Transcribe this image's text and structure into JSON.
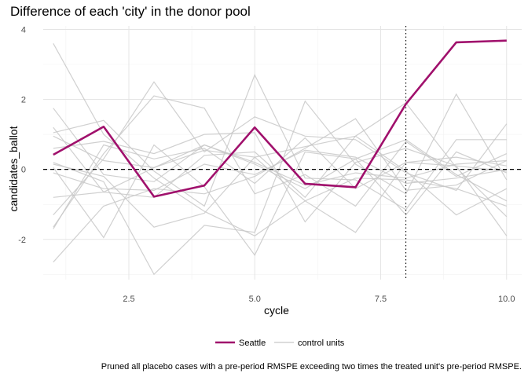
{
  "chart_data": {
    "type": "line",
    "title": "Difference of each 'city' in the donor pool",
    "xlabel": "cycle",
    "ylabel": "candidates_ballot",
    "xlim": [
      0.8,
      10.3
    ],
    "ylim": [
      -3.15,
      4.1
    ],
    "x_ticks": [
      2.5,
      5.0,
      7.5,
      10.0
    ],
    "x_tick_labels": [
      "2.5",
      "5.0",
      "7.5",
      "10.0"
    ],
    "y_ticks": [
      -2,
      0,
      2,
      4
    ],
    "y_tick_labels": [
      "-2",
      "0",
      "2",
      "4"
    ],
    "grid": true,
    "hline": {
      "y": 0,
      "style": "dashed"
    },
    "vline": {
      "x": 8,
      "style": "dotted"
    },
    "x": [
      1,
      2,
      3,
      4,
      5,
      6,
      7,
      8,
      9,
      10
    ],
    "treated_series": {
      "name": "Seattle",
      "color": "#A0106C",
      "values": [
        0.42,
        1.22,
        -0.78,
        -0.46,
        1.2,
        -0.41,
        -0.51,
        1.87,
        3.63,
        3.68
      ]
    },
    "control_series": {
      "name": "control units",
      "color": "#c8c8c8",
      "lines": [
        [
          3.6,
          1.0,
          -0.25,
          -1.2,
          -1.9,
          -0.9,
          -1.8,
          0.2,
          0.1,
          -1.9
        ],
        [
          1.75,
          -0.15,
          -0.35,
          0.7,
          0.15,
          -0.55,
          0.3,
          0.85,
          -0.15,
          -0.9
        ],
        [
          1.2,
          -0.65,
          -0.8,
          0.4,
          0.5,
          -0.8,
          0.95,
          -0.05,
          -1.3,
          -0.55
        ],
        [
          -1.7,
          0.7,
          0.3,
          0.6,
          -0.4,
          0.9,
          -0.55,
          0.2,
          0.35,
          0.1
        ],
        [
          -2.65,
          -1.05,
          -0.55,
          -0.7,
          -0.2,
          0.6,
          1.45,
          -0.6,
          -0.45,
          0.25
        ],
        [
          -0.8,
          -0.65,
          0.05,
          0.55,
          0.35,
          0.65,
          0.95,
          1.9,
          0.05,
          -1.35
        ],
        [
          -1.3,
          0.3,
          2.5,
          0.5,
          1.5,
          0.95,
          0.85,
          -0.1,
          -0.6,
          1.3
        ],
        [
          0.2,
          -0.35,
          -3.0,
          -1.6,
          -1.8,
          1.95,
          0.15,
          -0.7,
          2.15,
          -0.3
        ],
        [
          0.05,
          -1.95,
          0.7,
          -0.5,
          -2.45,
          0.5,
          0.3,
          -1.3,
          0.5,
          -0.1
        ],
        [
          1.05,
          1.4,
          -0.05,
          -1.05,
          2.7,
          -0.25,
          -0.3,
          -1.15,
          0.85,
          0.85
        ],
        [
          -1.65,
          0.45,
          2.1,
          1.75,
          -0.7,
          -0.15,
          -1.05,
          0.8,
          -0.2,
          0.45
        ],
        [
          0.95,
          0.25,
          0.05,
          0.7,
          0.2,
          -0.45,
          -0.1,
          -0.25,
          0.15,
          0.25
        ],
        [
          -0.1,
          -0.55,
          -0.6,
          0.15,
          -0.15,
          0.55,
          0.35,
          -0.4,
          -0.25,
          0.0
        ],
        [
          0.6,
          0.8,
          0.45,
          1.0,
          1.05,
          -1.5,
          0.2,
          0.6,
          0.1,
          -0.05
        ],
        [
          0.15,
          -0.2,
          -1.65,
          -1.25,
          0.35,
          -0.9,
          -0.25,
          -0.3,
          -0.55,
          -1.05
        ]
      ]
    },
    "legend": {
      "position": "bottom",
      "entries": [
        {
          "label": "Seattle",
          "color": "#A0106C"
        },
        {
          "label": "control units",
          "color": "#c8c8c8"
        }
      ]
    },
    "caption": "Pruned all placebo cases with a pre-period RMSPE exceeding two times the treated unit's pre-period RMSPE."
  }
}
